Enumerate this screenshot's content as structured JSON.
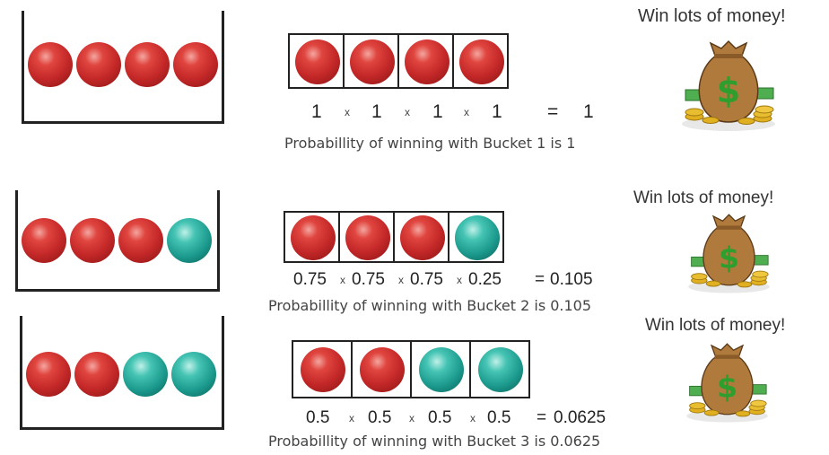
{
  "rows": [
    {
      "balls": [
        "red",
        "red",
        "red",
        "red"
      ],
      "terms": [
        "1",
        "1",
        "1",
        "1"
      ],
      "times": [
        "x",
        "x",
        "x"
      ],
      "equals": "=",
      "result": "1",
      "caption": "Probabillity of winning with Bucket 1 is 1",
      "win_text": "Win lots of money!"
    },
    {
      "balls": [
        "red",
        "red",
        "red",
        "teal"
      ],
      "terms": [
        "0.75",
        "0.75",
        "0.75",
        "0.25"
      ],
      "times": [
        "x",
        "x",
        "x"
      ],
      "equals": "=",
      "result": "0.105",
      "caption": "Probabillity of winning with Bucket 2 is 0.105",
      "win_text": "Win lots of money!"
    },
    {
      "balls": [
        "red",
        "red",
        "teal",
        "teal"
      ],
      "terms": [
        "0.5",
        "0.5",
        "0.5",
        "0.5"
      ],
      "times": [
        "x",
        "x",
        "x"
      ],
      "equals": "=",
      "result": "0.0625",
      "caption": "Probabillity of winning with Bucket 3 is 0.0625",
      "win_text": "Win lots of money!"
    }
  ],
  "icons": {
    "money_bag": "money-bag-icon"
  },
  "colors": {
    "red_ball": "#c42828",
    "teal_ball": "#1b9a8d",
    "bag": "#b07a3c",
    "dollar": "#2e9e2e",
    "coin": "#e0b020"
  }
}
